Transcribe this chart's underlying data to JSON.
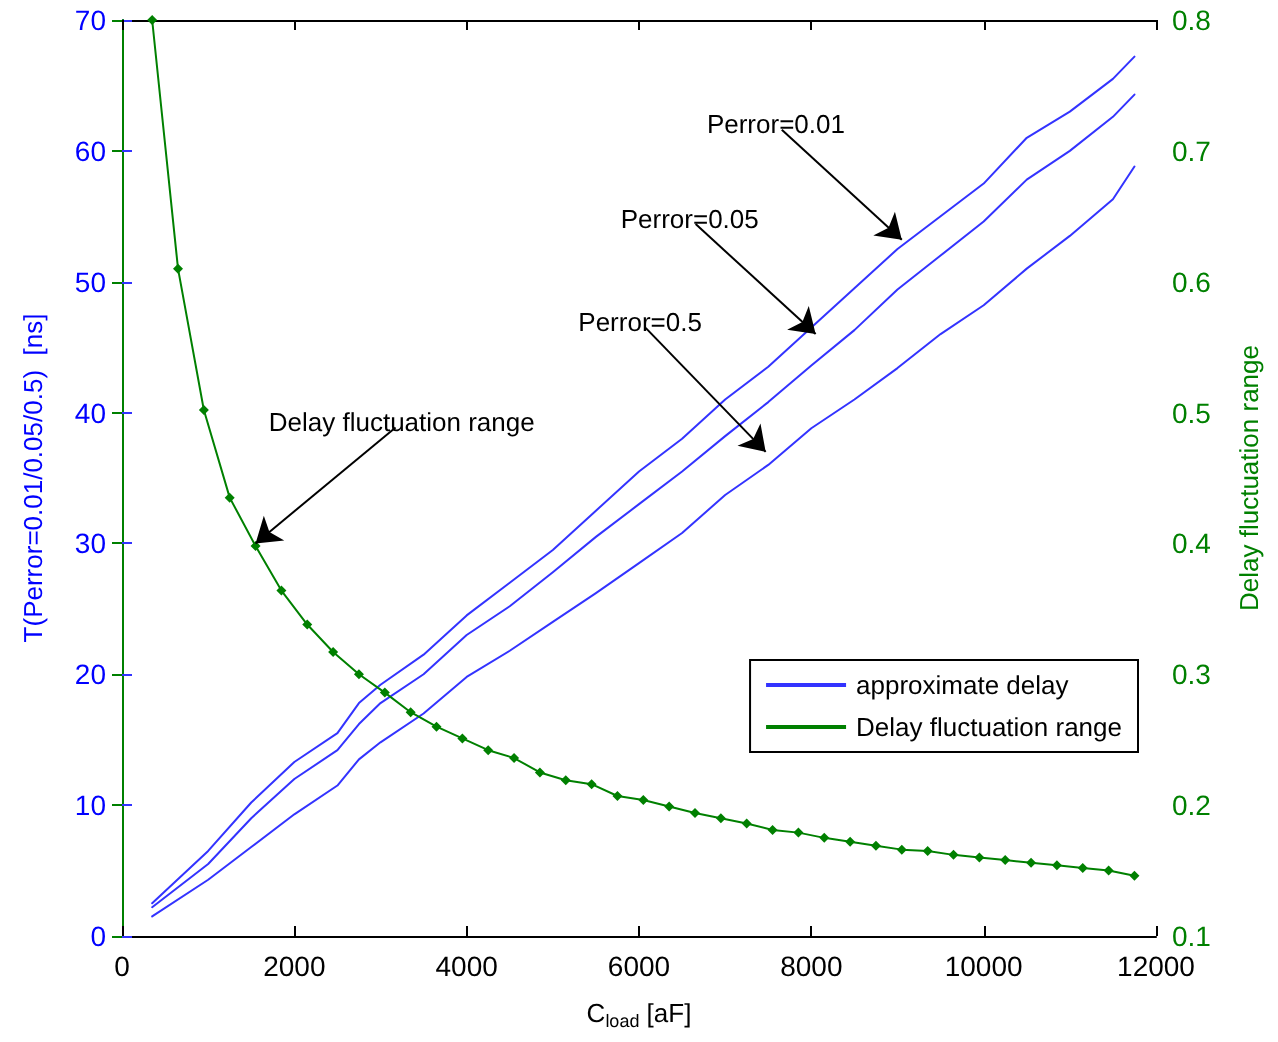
{
  "chart_data": {
    "type": "line",
    "xlabel": "C$_{load}$ [aF]",
    "ylabel": "T(Perror=0.01/0.05/0.5)  [ns]",
    "y2label": "Delay fluctuation range",
    "xlim": [
      0,
      12000
    ],
    "xticks": [
      0,
      2000,
      4000,
      6000,
      8000,
      10000,
      12000
    ],
    "ylim": [
      0,
      70
    ],
    "yticks": [
      0,
      10,
      20,
      30,
      40,
      50,
      60,
      70
    ],
    "y2lim": [
      0.1,
      0.8
    ],
    "y2ticks": [
      0.1,
      0.2,
      0.3,
      0.4,
      0.5,
      0.6,
      0.7,
      0.8
    ],
    "grid": false,
    "legend": "right",
    "line_style": "solid",
    "series": [
      {
        "name": "approximate delay",
        "color": "#3333ff",
        "marker": "none",
        "x": [
          350,
          1000,
          1500,
          2000,
          2500,
          2750,
          3000,
          3500,
          4000,
          4500,
          5000,
          5500,
          6000,
          6500,
          7000,
          7500,
          8000,
          8500,
          9000,
          9500,
          10000,
          10500,
          11000,
          11500,
          11750
        ],
        "values": [
          2.5,
          6.5,
          10.2,
          13.3,
          15.5,
          17.8,
          19.2,
          21.5,
          24.5,
          27,
          29.5,
          32.5,
          35.5,
          38,
          41,
          43.5,
          46.5,
          49.5,
          52.5,
          55,
          57.5,
          61,
          63,
          65.5,
          67.2
        ]
      },
      {
        "color": "#3333ff",
        "marker": "none",
        "x": [
          350,
          1000,
          1500,
          2000,
          2500,
          2750,
          3000,
          3500,
          4000,
          4500,
          5000,
          5500,
          6000,
          6500,
          7000,
          7500,
          8000,
          8500,
          9000,
          9500,
          10000,
          10500,
          11000,
          11500,
          11750
        ],
        "values": [
          2.2,
          5.5,
          9,
          12,
          14.2,
          16.2,
          17.8,
          20,
          23,
          25.2,
          27.8,
          30.5,
          33,
          35.5,
          38.2,
          40.8,
          43.6,
          46.3,
          49.4,
          52,
          54.6,
          57.8,
          60,
          62.6,
          64.3
        ]
      },
      {
        "color": "#3333ff",
        "marker": "none",
        "x": [
          350,
          1000,
          1500,
          2000,
          2500,
          2750,
          3000,
          3500,
          4000,
          4500,
          5000,
          5500,
          6000,
          6500,
          7000,
          7500,
          8000,
          8500,
          9000,
          9500,
          10000,
          10500,
          11000,
          11500,
          11750
        ],
        "values": [
          1.5,
          4.3,
          6.8,
          9.3,
          11.5,
          13.5,
          14.8,
          17,
          19.8,
          21.8,
          24,
          26.2,
          28.5,
          30.8,
          33.7,
          36,
          38.8,
          41,
          43.4,
          46,
          48.2,
          51,
          53.5,
          56.3,
          58.8
        ]
      },
      {
        "name": "Delay fluctuation range",
        "color": "#008000",
        "marker": "diamond",
        "axis": "y2",
        "x": [
          350,
          650,
          950,
          1250,
          1550,
          1850,
          2150,
          2450,
          2750,
          3050,
          3350,
          3650,
          3950,
          4250,
          4550,
          4850,
          5150,
          5450,
          5750,
          6050,
          6350,
          6650,
          6950,
          7250,
          7550,
          7850,
          8150,
          8450,
          8750,
          9050,
          9350,
          9650,
          9950,
          10250,
          10550,
          10850,
          11150,
          11450,
          11750
        ],
        "values": [
          0.8,
          0.61,
          0.502,
          0.435,
          0.398,
          0.364,
          0.338,
          0.317,
          0.3,
          0.286,
          0.271,
          0.26,
          0.251,
          0.242,
          0.236,
          0.225,
          0.219,
          0.216,
          0.207,
          0.204,
          0.199,
          0.194,
          0.19,
          0.186,
          0.181,
          0.179,
          0.175,
          0.172,
          0.169,
          0.166,
          0.165,
          0.162,
          0.16,
          0.158,
          0.156,
          0.154,
          0.152,
          0.15,
          0.146
        ]
      }
    ],
    "annotations": [
      {
        "text": "Perror=0.01",
        "x": 9050,
        "y": 53.2
      },
      {
        "text": "Perror=0.05",
        "x": 8050,
        "y": 46
      },
      {
        "text": "Perror=0.5",
        "x": 7470,
        "y": 37
      },
      {
        "text": "Delay fluctuation range",
        "x": 1550,
        "y": 30
      }
    ]
  }
}
